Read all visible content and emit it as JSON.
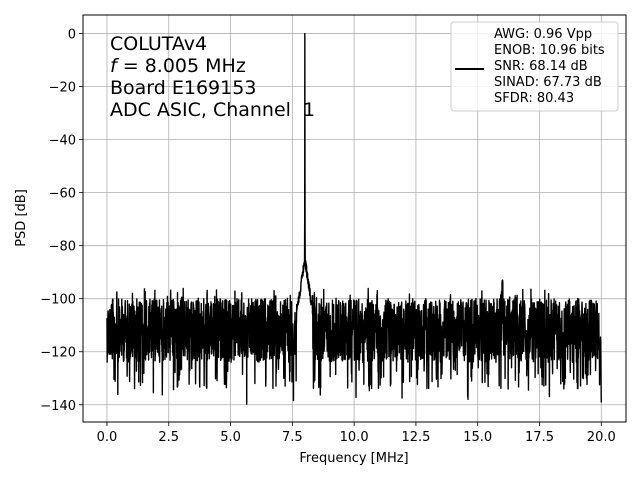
{
  "chart_data": {
    "type": "line",
    "title": "",
    "xlabel": "Frequency [MHz]",
    "ylabel": "PSD [dB]",
    "xlim": [
      -0.97,
      21.0
    ],
    "ylim": [
      -146.5,
      7.0
    ],
    "xticks": [
      0.0,
      2.5,
      5.0,
      7.5,
      10.0,
      12.5,
      15.0,
      17.5,
      20.0
    ],
    "xtick_labels": [
      "0.0",
      "2.5",
      "5.0",
      "7.5",
      "10.0",
      "12.5",
      "15.0",
      "17.5",
      "20.0"
    ],
    "yticks": [
      0,
      -20,
      -40,
      -60,
      -80,
      -100,
      -120,
      -140
    ],
    "ytick_labels": [
      "0",
      "−20",
      "−40",
      "−60",
      "−80",
      "−100",
      "−120",
      "−140"
    ],
    "grid": true,
    "annotation": {
      "line1": "COLUTAv4",
      "line2_italic": "f",
      "line2_rest": " = 8.005 MHz",
      "line3": "Board E169153",
      "line4": "ADC ASIC, Channel  1"
    },
    "legend": {
      "placement": "top-right",
      "lines": [
        "AWG: 0.96 Vpp",
        "ENOB: 10.96 bits",
        "SNR: 68.14 dB",
        "SINAD: 67.73 dB",
        "SFDR: 80.43"
      ]
    },
    "series": [
      {
        "color": "#000000",
        "x_range": [
          0.0,
          20.0
        ],
        "noise_floor_top_db": -100,
        "noise_floor_bottom_db": -120,
        "noise_floor_min_db": -140,
        "peak": {
          "x": 8.005,
          "y": 0
        },
        "skirt": {
          "x_from": 7.7,
          "x_to": 8.3,
          "top_db": -83
        },
        "spur": {
          "x": 16.0,
          "y": -92
        }
      }
    ]
  }
}
